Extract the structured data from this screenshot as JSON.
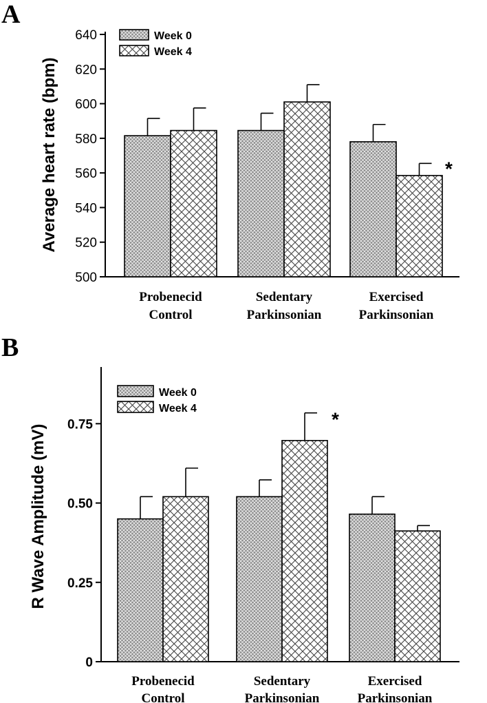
{
  "chart_data": [
    {
      "type": "bar",
      "panel_letter": "A",
      "ylabel": "Average heart rate (bpm)",
      "xlabel": "",
      "ylim": [
        500,
        640
      ],
      "yticks": [
        500,
        520,
        540,
        560,
        580,
        600,
        620,
        640
      ],
      "ytick_labels": [
        "500",
        "520",
        "540",
        "560",
        "580",
        "600",
        "620",
        "640"
      ],
      "categories": [
        [
          "Probenecid",
          "Control"
        ],
        [
          "Sedentary",
          "Parkinsonian"
        ],
        [
          "Exercised",
          "Parkinsonian"
        ]
      ],
      "series": [
        {
          "name": "Week 0",
          "values": [
            581.5,
            584.5,
            578
          ],
          "errors": [
            10,
            10,
            10
          ]
        },
        {
          "name": "Week 4",
          "values": [
            584.5,
            601,
            558.5
          ],
          "errors": [
            13,
            10,
            7
          ]
        }
      ],
      "legend_position": "top-left",
      "significance": [
        {
          "series": 1,
          "category": 2,
          "label": "*"
        }
      ]
    },
    {
      "type": "bar",
      "panel_letter": "B",
      "ylabel": "R Wave Amplitude (mV)",
      "xlabel": "",
      "ylim": [
        0,
        0.92
      ],
      "yticks": [
        0,
        0.25,
        0.5,
        0.75
      ],
      "ytick_labels": [
        "0",
        "0.25",
        "0.50",
        "0.75"
      ],
      "categories": [
        [
          "Probenecid",
          "Control"
        ],
        [
          "Sedentary",
          "Parkinsonian"
        ],
        [
          "Exercised",
          "Parkinsonian"
        ]
      ],
      "series": [
        {
          "name": "Week 0",
          "values": [
            0.45,
            0.52,
            0.465
          ],
          "errors": [
            0.07,
            0.053,
            0.055
          ]
        },
        {
          "name": "Week 4",
          "values": [
            0.52,
            0.697,
            0.412
          ],
          "errors": [
            0.09,
            0.087,
            0.017
          ]
        }
      ],
      "legend_position": "top-left",
      "significance": [
        {
          "series": 1,
          "category": 1,
          "label": "*"
        }
      ]
    }
  ]
}
